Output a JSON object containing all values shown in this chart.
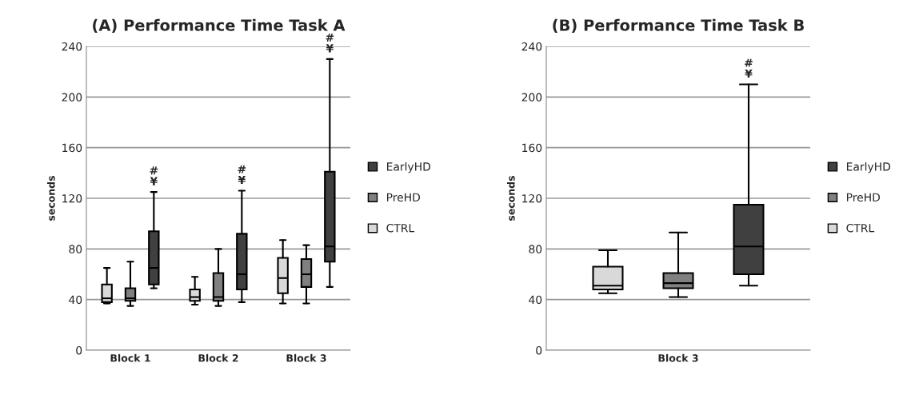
{
  "chart_data": [
    {
      "type": "box",
      "title": "(A) Performance Time Task A",
      "ylabel": "seconds",
      "categories": [
        "Block 1",
        "Block 2",
        "Block 3"
      ],
      "ylim": [
        0,
        240
      ],
      "yticks": [
        0,
        40,
        80,
        120,
        160,
        200,
        240
      ],
      "grid": "y",
      "legend": "right",
      "series": [
        {
          "name": "CTRL",
          "color": "#d9d9d9",
          "boxes": [
            {
              "low": 37,
              "q1": 38,
              "median": 41,
              "q3": 52,
              "high": 65
            },
            {
              "low": 36,
              "q1": 39,
              "median": 42,
              "q3": 48,
              "high": 58
            },
            {
              "low": 37,
              "q1": 45,
              "median": 57,
              "q3": 73,
              "high": 87
            }
          ]
        },
        {
          "name": "PreHD",
          "color": "#808080",
          "boxes": [
            {
              "low": 35,
              "q1": 39,
              "median": 41,
              "q3": 49,
              "high": 70
            },
            {
              "low": 35,
              "q1": 39,
              "median": 42,
              "q3": 61,
              "high": 80
            },
            {
              "low": 37,
              "q1": 50,
              "median": 60,
              "q3": 72,
              "high": 83
            }
          ]
        },
        {
          "name": "EarlyHD",
          "color": "#404040",
          "boxes": [
            {
              "low": 49,
              "q1": 52,
              "median": 65,
              "q3": 94,
              "high": 125
            },
            {
              "low": 38,
              "q1": 48,
              "median": 60,
              "q3": 92,
              "high": 126
            },
            {
              "low": 50,
              "q1": 70,
              "median": 82,
              "q3": 141,
              "high": 230
            }
          ]
        }
      ],
      "annotations": [
        "#\n¥",
        "#\n¥",
        "#\n¥"
      ]
    },
    {
      "type": "box",
      "title": "(B) Performance Time Task B",
      "ylabel": "seconds",
      "categories": [
        "Block 3"
      ],
      "ylim": [
        0,
        240
      ],
      "yticks": [
        0,
        40,
        80,
        120,
        160,
        200,
        240
      ],
      "grid": "y",
      "legend": "right",
      "series": [
        {
          "name": "CTRL",
          "color": "#d9d9d9",
          "boxes": [
            {
              "low": 45,
              "q1": 48,
              "median": 51,
              "q3": 66,
              "high": 79
            }
          ]
        },
        {
          "name": "PreHD",
          "color": "#808080",
          "boxes": [
            {
              "low": 42,
              "q1": 49,
              "median": 53,
              "q3": 61,
              "high": 93
            }
          ]
        },
        {
          "name": "EarlyHD",
          "color": "#404040",
          "boxes": [
            {
              "low": 51,
              "q1": 60,
              "median": 82,
              "q3": 115,
              "high": 210
            }
          ]
        }
      ],
      "annotations": [
        "#\n¥"
      ]
    }
  ]
}
